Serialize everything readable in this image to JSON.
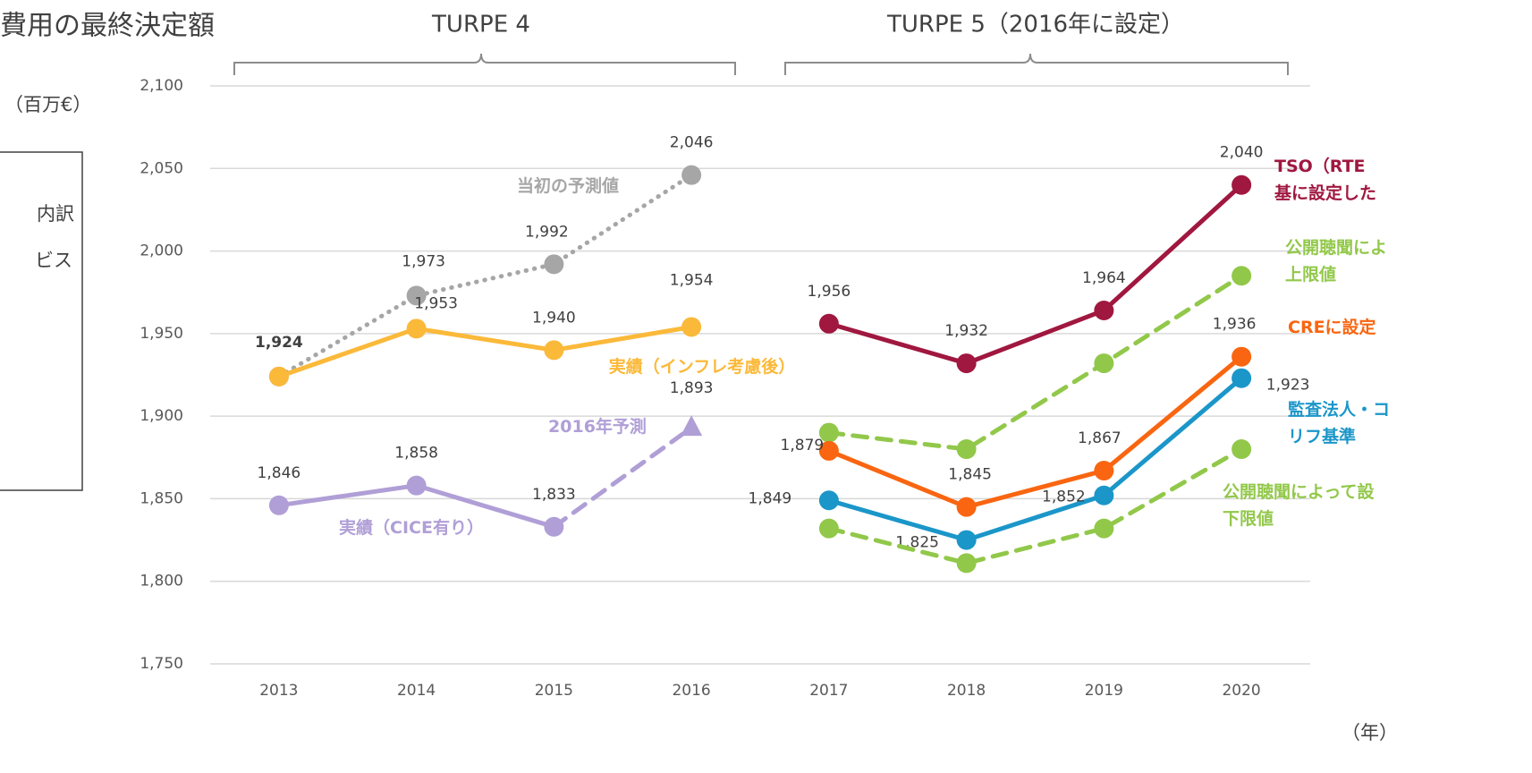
{
  "chart_data": {
    "type": "line",
    "title": "費用の最終決定額",
    "y_unit": "（百万€）",
    "x_unit": "（年）",
    "periods": [
      "TURPE 4",
      "TURPE 5（2016年に設定）"
    ],
    "side_notes": [
      "内訳",
      "ビス"
    ],
    "categories": [
      "2013",
      "2014",
      "2015",
      "2016",
      "2017",
      "2018",
      "2019",
      "2020"
    ],
    "ylim": [
      1750,
      2100
    ],
    "yticks": [
      {
        "value": 1750,
        "label": "1,750"
      },
      {
        "value": 1800,
        "label": "1,800"
      },
      {
        "value": 1850,
        "label": "1,850"
      },
      {
        "value": 1900,
        "label": "1,900"
      },
      {
        "value": 1950,
        "label": "1,950"
      },
      {
        "value": 2000,
        "label": "2,000"
      },
      {
        "value": 2050,
        "label": "2,050"
      },
      {
        "value": 2100,
        "label": "2,100"
      }
    ],
    "grid": true,
    "series": [
      {
        "name": "当初の予測値",
        "color": "#a6a6a6",
        "dash": "dotted",
        "marker": "circle",
        "values": [
          1924,
          1973,
          1992,
          2046,
          null,
          null,
          null,
          null
        ],
        "value_labels": [
          null,
          "1,973",
          "1,992",
          "2,046",
          null,
          null,
          null,
          null
        ]
      },
      {
        "name": "実績（インフレ考慮後）",
        "color": "#fbb93a",
        "dash": "solid",
        "marker": "circle",
        "values": [
          1924,
          1953,
          1940,
          1954,
          null,
          null,
          null,
          null
        ],
        "value_labels": [
          "1,924",
          "1,953",
          "1,940",
          "1,954",
          null,
          null,
          null,
          null
        ]
      },
      {
        "name": "2016年予測",
        "color": "#b09fd6",
        "dash": "dashed",
        "marker": "triangle",
        "values": [
          null,
          null,
          1833,
          1893,
          null,
          null,
          null,
          null
        ],
        "value_labels": [
          null,
          null,
          null,
          "1,893",
          null,
          null,
          null,
          null
        ]
      },
      {
        "name": "実績（CICE有り）",
        "color": "#b09fd6",
        "dash": "solid",
        "marker": "circle",
        "values": [
          1846,
          1858,
          1833,
          null,
          null,
          null,
          null,
          null
        ],
        "value_labels": [
          "1,846",
          "1,858",
          "1,833",
          null,
          null,
          null,
          null,
          null
        ]
      },
      {
        "name": "TSO（RTE\n基に設定した",
        "color": "#a0173f",
        "dash": "solid",
        "marker": "circle",
        "values": [
          null,
          null,
          null,
          null,
          1956,
          1932,
          1964,
          2040
        ],
        "value_labels": [
          null,
          null,
          null,
          null,
          "1,956",
          "1,932",
          "1,964",
          "2,040"
        ]
      },
      {
        "name": "公開聴聞によ\n上限値",
        "color": "#92c84a",
        "dash": "dashed",
        "marker": "circle",
        "values": [
          null,
          null,
          null,
          null,
          1890,
          1880,
          1932,
          1985
        ]
      },
      {
        "name": "CREに設定",
        "color": "#f96510",
        "dash": "solid",
        "marker": "circle",
        "values": [
          null,
          null,
          null,
          null,
          1879,
          1845,
          1867,
          1936
        ],
        "value_labels": [
          null,
          null,
          null,
          null,
          "1,879",
          "1,845",
          "1,867",
          "1,936"
        ]
      },
      {
        "name": "監査法人・コ\nリフ基準",
        "color": "#1b96c9",
        "dash": "solid",
        "marker": "circle",
        "values": [
          null,
          null,
          null,
          null,
          1849,
          1825,
          1852,
          1923
        ],
        "value_labels": [
          null,
          null,
          null,
          null,
          "1,849",
          "1,825",
          "1,852",
          "1,923"
        ]
      },
      {
        "name": "公開聴聞によって設\n下限値",
        "color": "#92c84a",
        "dash": "dashed",
        "marker": "circle",
        "values": [
          null,
          null,
          null,
          null,
          1832,
          1811,
          1832,
          1880
        ]
      }
    ]
  }
}
